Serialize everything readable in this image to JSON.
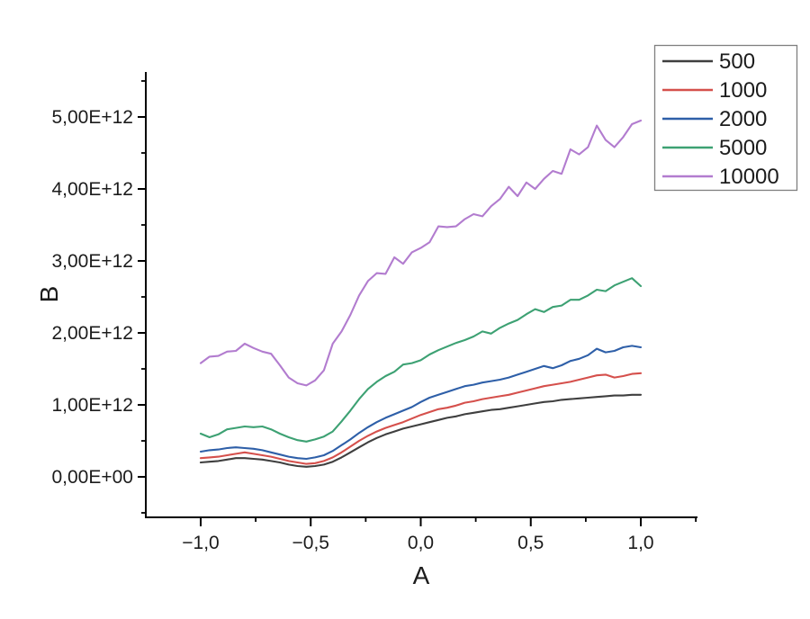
{
  "figure": {
    "background": "#ffffff",
    "axis_color": "#000000",
    "text_color": "#1c1c1c",
    "legend_border_color": "#7f7f7f"
  },
  "chart_data": {
    "type": "line",
    "title": "",
    "xlabel": "A",
    "ylabel": "B",
    "grid": false,
    "legend_position": "top-right",
    "legend_entries": [
      "500",
      "1000",
      "2000",
      "5000",
      "10000"
    ],
    "xlim": [
      -1.25,
      1.26
    ],
    "ylim": [
      -560000000000.0,
      5630000000000.0
    ],
    "x_major_ticks": [
      {
        "v": -1.0,
        "label": "−1,0"
      },
      {
        "v": -0.5,
        "label": "−0,5"
      },
      {
        "v": 0.0,
        "label": "0,0"
      },
      {
        "v": 0.5,
        "label": "0,5"
      },
      {
        "v": 1.0,
        "label": "1,0"
      }
    ],
    "x_minor_ticks": [
      -1.25,
      -0.75,
      -0.25,
      0.25,
      0.75,
      1.25
    ],
    "y_major_ticks": [
      {
        "v": 0,
        "label": "0,00E+00"
      },
      {
        "v": 1,
        "label": "1,00E+12"
      },
      {
        "v": 2,
        "label": "2,00E+12"
      },
      {
        "v": 3,
        "label": "3,00E+12"
      },
      {
        "v": 4,
        "label": "4,00E+12"
      },
      {
        "v": 5,
        "label": "5,00E+12"
      }
    ],
    "y_minor_ticks": [
      -0.5,
      0.5,
      1.5,
      2.5,
      3.5,
      4.5,
      5.5
    ],
    "y_unit_e": 1000000000000.0,
    "x": [
      -1,
      -0.96,
      -0.92,
      -0.88,
      -0.84,
      -0.8,
      -0.76,
      -0.72,
      -0.68,
      -0.64,
      -0.6,
      -0.56,
      -0.52,
      -0.48,
      -0.44,
      -0.4,
      -0.36,
      -0.32,
      -0.28,
      -0.24,
      -0.2,
      -0.16,
      -0.12,
      -0.08,
      -0.04,
      0,
      0.04,
      0.08,
      0.12,
      0.16,
      0.2,
      0.24,
      0.28,
      0.32,
      0.36,
      0.4,
      0.44,
      0.48,
      0.52,
      0.56,
      0.6,
      0.64,
      0.68,
      0.72,
      0.76,
      0.8,
      0.84,
      0.88,
      0.92,
      0.96,
      1
    ],
    "series": [
      {
        "name": "500",
        "color": "#3f3f3f",
        "values_e12": [
          0.2,
          0.21,
          0.22,
          0.24,
          0.26,
          0.26,
          0.25,
          0.24,
          0.22,
          0.2,
          0.17,
          0.15,
          0.14,
          0.15,
          0.17,
          0.21,
          0.27,
          0.34,
          0.41,
          0.48,
          0.54,
          0.59,
          0.63,
          0.67,
          0.7,
          0.73,
          0.76,
          0.79,
          0.82,
          0.84,
          0.87,
          0.89,
          0.91,
          0.93,
          0.94,
          0.96,
          0.98,
          1.0,
          1.02,
          1.04,
          1.05,
          1.07,
          1.08,
          1.09,
          1.1,
          1.11,
          1.12,
          1.13,
          1.13,
          1.14,
          1.14
        ]
      },
      {
        "name": "1000",
        "color": "#d5504c",
        "values_e12": [
          0.26,
          0.27,
          0.28,
          0.3,
          0.32,
          0.34,
          0.32,
          0.3,
          0.28,
          0.25,
          0.22,
          0.2,
          0.18,
          0.19,
          0.22,
          0.27,
          0.34,
          0.42,
          0.5,
          0.57,
          0.63,
          0.68,
          0.72,
          0.76,
          0.81,
          0.86,
          0.9,
          0.94,
          0.96,
          0.99,
          1.03,
          1.05,
          1.08,
          1.1,
          1.12,
          1.14,
          1.17,
          1.2,
          1.23,
          1.26,
          1.28,
          1.3,
          1.32,
          1.35,
          1.38,
          1.41,
          1.42,
          1.38,
          1.4,
          1.43,
          1.44
        ]
      },
      {
        "name": "2000",
        "color": "#2e5fa8",
        "values_e12": [
          0.35,
          0.37,
          0.38,
          0.4,
          0.41,
          0.4,
          0.39,
          0.37,
          0.34,
          0.31,
          0.28,
          0.26,
          0.25,
          0.27,
          0.3,
          0.36,
          0.44,
          0.52,
          0.61,
          0.69,
          0.76,
          0.82,
          0.87,
          0.92,
          0.97,
          1.04,
          1.1,
          1.14,
          1.18,
          1.22,
          1.26,
          1.28,
          1.31,
          1.33,
          1.35,
          1.38,
          1.42,
          1.46,
          1.5,
          1.54,
          1.51,
          1.55,
          1.61,
          1.64,
          1.69,
          1.78,
          1.73,
          1.75,
          1.8,
          1.82,
          1.8
        ]
      },
      {
        "name": "5000",
        "color": "#3da173",
        "values_e12": [
          0.6,
          0.55,
          0.59,
          0.66,
          0.68,
          0.7,
          0.69,
          0.7,
          0.66,
          0.6,
          0.55,
          0.51,
          0.49,
          0.52,
          0.56,
          0.63,
          0.77,
          0.92,
          1.08,
          1.22,
          1.32,
          1.4,
          1.46,
          1.56,
          1.58,
          1.62,
          1.7,
          1.76,
          1.81,
          1.86,
          1.9,
          1.95,
          2.02,
          1.99,
          2.07,
          2.13,
          2.18,
          2.26,
          2.33,
          2.29,
          2.36,
          2.38,
          2.46,
          2.46,
          2.52,
          2.6,
          2.58,
          2.66,
          2.71,
          2.76,
          2.65
        ]
      },
      {
        "name": "10000",
        "color": "#b27ccf",
        "values_e12": [
          1.58,
          1.67,
          1.68,
          1.74,
          1.75,
          1.85,
          1.79,
          1.74,
          1.71,
          1.55,
          1.38,
          1.3,
          1.27,
          1.34,
          1.48,
          1.85,
          2.02,
          2.25,
          2.52,
          2.72,
          2.83,
          2.82,
          3.05,
          2.96,
          3.12,
          3.18,
          3.26,
          3.48,
          3.47,
          3.48,
          3.58,
          3.65,
          3.62,
          3.76,
          3.86,
          4.03,
          3.9,
          4.09,
          4.0,
          4.14,
          4.25,
          4.21,
          4.55,
          4.48,
          4.58,
          4.88,
          4.68,
          4.58,
          4.72,
          4.9,
          4.95
        ]
      }
    ]
  }
}
